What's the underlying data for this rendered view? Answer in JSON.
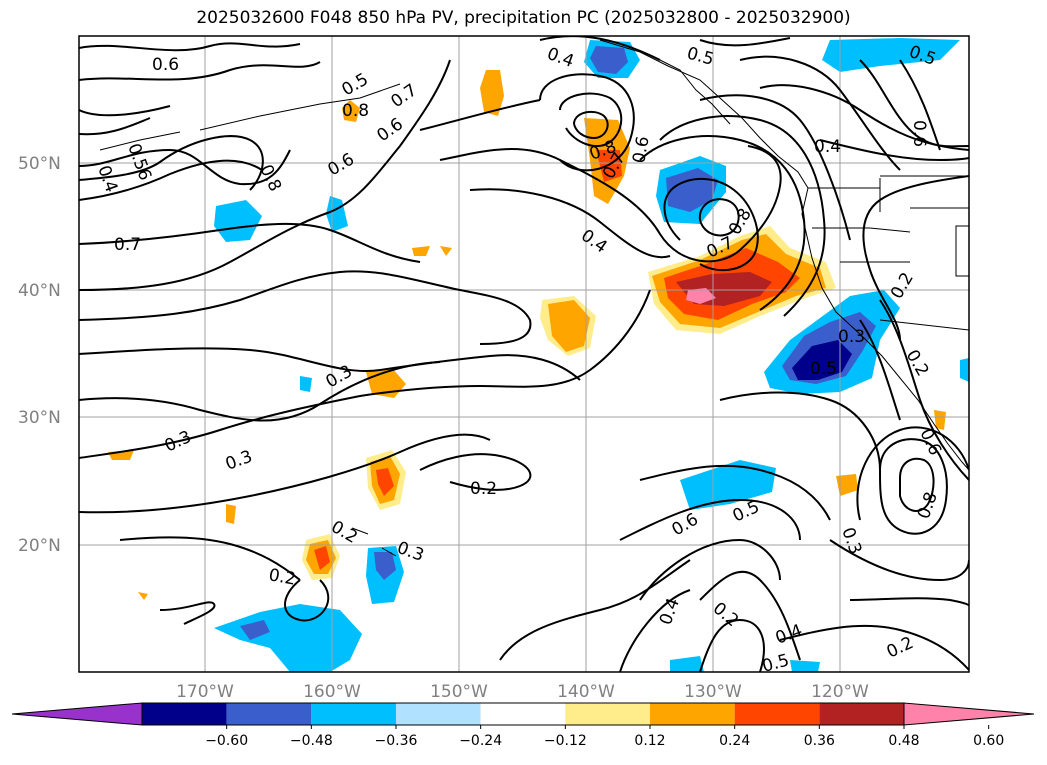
{
  "title": "2025032600 F048 850 hPa PV, precipitation PC (2025032800 - 2025032900)",
  "map": {
    "lat_labels": [
      "50°N",
      "40°N",
      "30°N",
      "20°N"
    ],
    "lon_labels": [
      "170°W",
      "160°W",
      "150°W",
      "140°W",
      "130°W",
      "120°W"
    ],
    "grid": true,
    "coastlines": true
  },
  "pv_contour_labels": [
    {
      "text": "0.6"
    },
    {
      "text": "0.8"
    },
    {
      "text": "0.7"
    },
    {
      "text": "0.6"
    },
    {
      "text": "0.6"
    },
    {
      "text": "0.4"
    },
    {
      "text": "0.56"
    },
    {
      "text": "0.8"
    },
    {
      "text": "0.7"
    },
    {
      "text": "0.4"
    },
    {
      "text": "0.5"
    },
    {
      "text": "0.8"
    },
    {
      "text": "0.7"
    },
    {
      "text": "0.6"
    },
    {
      "text": "0.4"
    },
    {
      "text": "0.5"
    },
    {
      "text": "0.6"
    },
    {
      "text": "0.4"
    },
    {
      "text": "0.8"
    },
    {
      "text": "0.7"
    },
    {
      "text": "0.3"
    },
    {
      "text": "0.3"
    },
    {
      "text": "0.2"
    },
    {
      "text": "0.2"
    },
    {
      "text": "0.2"
    },
    {
      "text": "0.3"
    },
    {
      "text": "0.3"
    },
    {
      "text": "0.6"
    },
    {
      "text": "0.5"
    },
    {
      "text": "0.4"
    },
    {
      "text": "0.2"
    },
    {
      "text": "0.4"
    },
    {
      "text": "0.5"
    },
    {
      "text": "0.2"
    },
    {
      "text": "0.3"
    },
    {
      "text": "0.2"
    },
    {
      "text": "0.8"
    },
    {
      "text": "0.5"
    },
    {
      "text": "0.3"
    },
    {
      "text": "0.2"
    },
    {
      "text": "0.6"
    },
    {
      "text": "0.5"
    }
  ],
  "colorbar": {
    "ticks": [
      "−0.60",
      "−0.48",
      "−0.36",
      "−0.24",
      "−0.12",
      "0.12",
      "0.24",
      "0.36",
      "0.48",
      "0.60"
    ],
    "colors": [
      "#9932cc",
      "#00008b",
      "#3a5fcd",
      "#00bfff",
      "#b0e2ff",
      "#ffffff",
      "#ffec8b",
      "#ffa500",
      "#ff4500",
      "#b22222",
      "#ff82ab"
    ]
  }
}
